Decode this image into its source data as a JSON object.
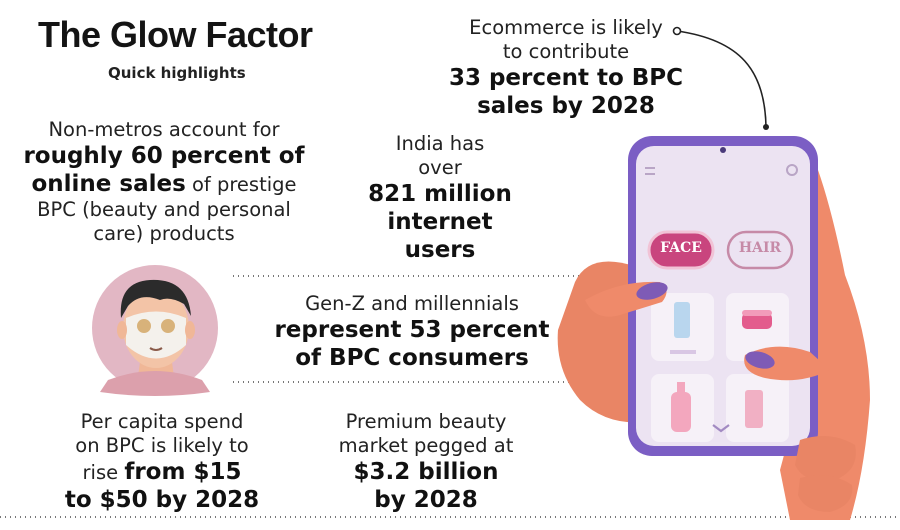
{
  "header": {
    "title": "The Glow Factor",
    "subtitle": "Quick highlights"
  },
  "facts": {
    "ecommerce": {
      "line1": "Ecommerce is likely",
      "line2": "to contribute",
      "bold1": "33 percent to BPC",
      "bold2": "sales by 2028"
    },
    "nonmetros": {
      "line1": "Non-metros account for",
      "bold1": "roughly 60 percent of",
      "bold2": "online sales",
      "line2_rest": " of prestige",
      "line3": "BPC (beauty and personal",
      "line4": "care) products"
    },
    "internet": {
      "line1": "India has",
      "line2": "over",
      "bold1": "821 million",
      "bold2": "internet",
      "bold3": "users"
    },
    "genz": {
      "line1": "Gen-Z and millennials",
      "bold1": "represent 53 percent",
      "bold2": "of BPC consumers"
    },
    "percapita": {
      "line1": "Per capita spend",
      "line2": "on BPC is likely to",
      "line3_pre": "rise ",
      "bold1": "from $15",
      "bold2": "to $50 by 2028"
    },
    "premium": {
      "line1": "Premium beauty",
      "line2": "market pegged at",
      "bold1": "$3.2 billion",
      "bold2": "by 2028"
    }
  },
  "phone": {
    "tab_face": "FACE",
    "tab_hair": "HAIR"
  },
  "colors": {
    "phone_frame": "#7b5ec4",
    "screen": "#ece3f2",
    "skin": "#ef8a6a",
    "nail": "#7e5bb6",
    "face_tab": "#c9457e",
    "avatar_bg": "#e2b7c4"
  }
}
